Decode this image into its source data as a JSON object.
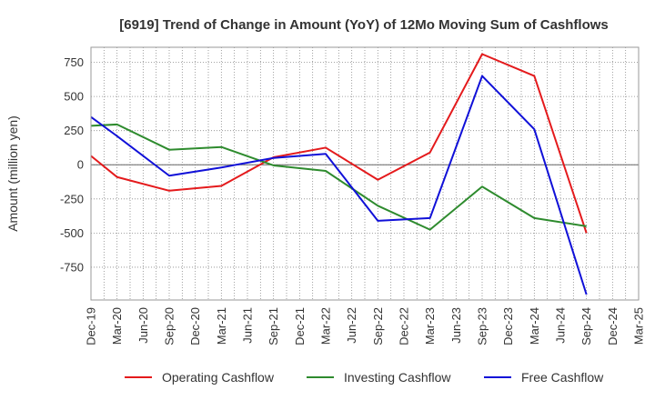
{
  "chart_data": {
    "type": "line",
    "title": "[6919]  Trend of Change in Amount (YoY) of 12Mo Moving Sum of Cashflows",
    "xlabel": "",
    "ylabel": "Amount (million yen)",
    "ylim": [
      -990,
      860
    ],
    "yticks": [
      750,
      500,
      250,
      0,
      -250,
      -500,
      -750
    ],
    "ytick_labels": [
      "750",
      "500",
      "250",
      "0",
      "-250",
      "-500",
      "-750"
    ],
    "grid": true,
    "legend_position": "bottom",
    "categories": [
      "Dec-19",
      "Mar-20",
      "Jun-20",
      "Sep-20",
      "Dec-20",
      "Mar-21",
      "Jun-21",
      "Sep-21",
      "Dec-21",
      "Mar-22",
      "Jun-22",
      "Sep-22",
      "Dec-22",
      "Mar-23",
      "Jun-23",
      "Sep-23",
      "Dec-23",
      "Mar-24",
      "Jun-24",
      "Sep-24",
      "Dec-24",
      "Mar-25"
    ],
    "series": [
      {
        "name": "Operating Cashflow",
        "color": "#e41a1c",
        "values": [
          65,
          -90,
          null,
          -190,
          null,
          -155,
          null,
          55,
          null,
          125,
          null,
          -110,
          null,
          90,
          null,
          810,
          null,
          650,
          null,
          -500,
          null,
          null
        ]
      },
      {
        "name": "Investing Cashflow",
        "color": "#2e8b2e",
        "values": [
          285,
          295,
          null,
          110,
          null,
          130,
          null,
          -5,
          null,
          -45,
          null,
          -300,
          null,
          -475,
          null,
          -160,
          null,
          -390,
          null,
          -450,
          null,
          null
        ]
      },
      {
        "name": "Free Cashflow",
        "color": "#1010d8",
        "values": [
          350,
          210,
          null,
          -80,
          null,
          -20,
          null,
          50,
          null,
          80,
          null,
          -410,
          null,
          -390,
          null,
          650,
          null,
          260,
          null,
          -950,
          null,
          null
        ]
      }
    ]
  }
}
